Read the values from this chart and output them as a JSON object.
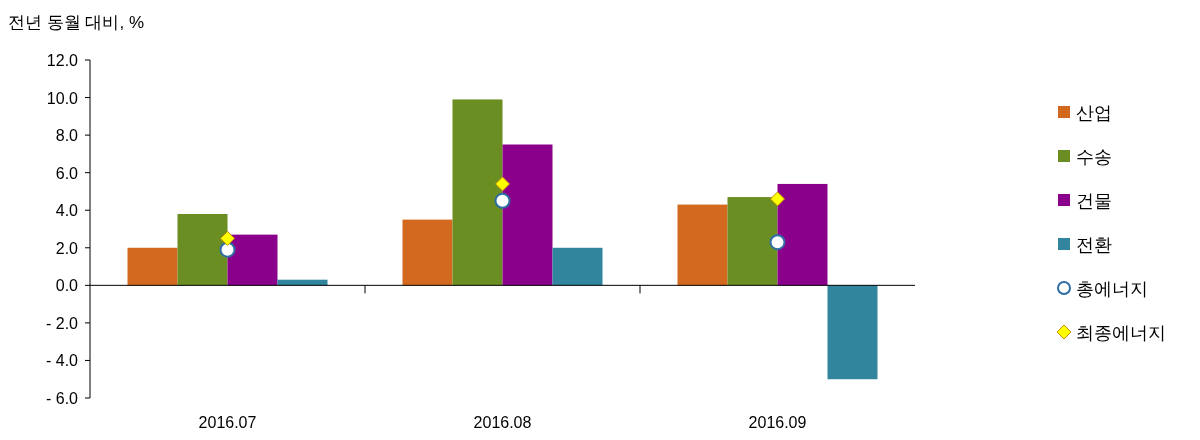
{
  "chart_data": {
    "type": "bar",
    "ylabel": "전년 동월 대비, %",
    "categories": [
      "2016.07",
      "2016.08",
      "2016.09"
    ],
    "series": [
      {
        "name": "산업",
        "color": "#d2691e",
        "values": [
          2.0,
          3.5,
          4.3
        ]
      },
      {
        "name": "수송",
        "color": "#6b8e23",
        "values": [
          3.8,
          9.9,
          4.7
        ]
      },
      {
        "name": "건물",
        "color": "#8b008b",
        "values": [
          2.7,
          7.5,
          5.4
        ]
      },
      {
        "name": "전환",
        "color": "#31859c",
        "values": [
          0.3,
          2.0,
          -5.0
        ]
      },
      {
        "name": "총에너지",
        "type": "scatter",
        "marker": "circle",
        "color": "#2e6da4",
        "values": [
          1.9,
          4.5,
          2.3
        ]
      },
      {
        "name": "최종에너지",
        "type": "scatter",
        "marker": "diamond",
        "color": "#ffff00",
        "values": [
          2.5,
          5.4,
          4.6
        ]
      }
    ],
    "ylim": [
      -6,
      12
    ],
    "yticks": [
      {
        "value": -6,
        "label": "- 6.0"
      },
      {
        "value": -4,
        "label": "- 4.0"
      },
      {
        "value": -2,
        "label": "- 2.0"
      },
      {
        "value": 0,
        "label": "0.0"
      },
      {
        "value": 2,
        "label": "2.0"
      },
      {
        "value": 4,
        "label": "4.0"
      },
      {
        "value": 6,
        "label": "6.0"
      },
      {
        "value": 8,
        "label": "8.0"
      },
      {
        "value": 10,
        "label": "10.0"
      },
      {
        "value": 12,
        "label": "12.0"
      }
    ],
    "legend": "right"
  }
}
